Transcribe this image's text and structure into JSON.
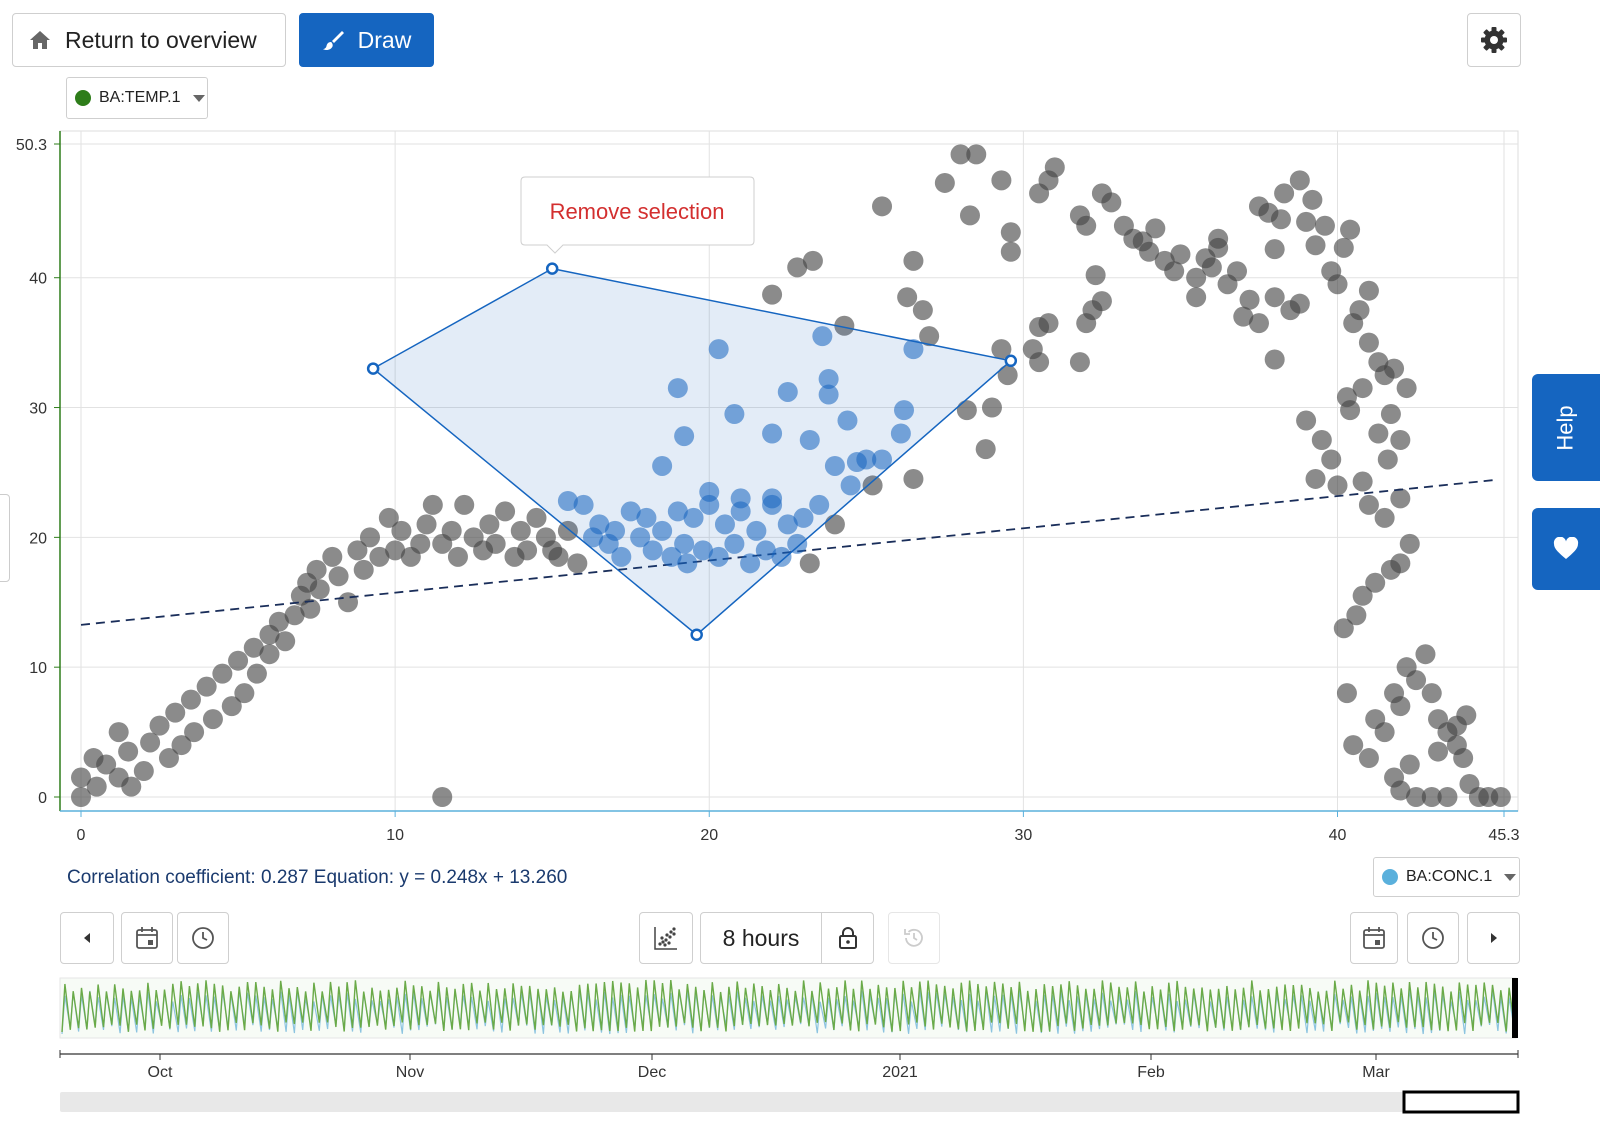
{
  "toolbar": {
    "return_label": "Return to overview",
    "draw_label": "Draw",
    "home_icon": "home-icon",
    "brush_icon": "brush-icon",
    "settings_icon": "gear-icon"
  },
  "selectors": {
    "y_series": {
      "label": "BA:TEMP.1",
      "color": "#2e7d1a"
    },
    "x_series": {
      "label": "BA:CONC.1",
      "color": "#5ab0dc"
    }
  },
  "selection_popup": {
    "label": "Remove selection",
    "color": "#d32f2f"
  },
  "chart_data": {
    "type": "scatter",
    "title": "",
    "xlabel": "",
    "ylabel": "",
    "xlim": [
      0,
      45.3
    ],
    "ylim": [
      0,
      50.3
    ],
    "x_ticks": [
      "0",
      "10",
      "20",
      "30",
      "40",
      "45.3"
    ],
    "y_ticks": [
      "0",
      "10",
      "20",
      "30",
      "40",
      "50.3"
    ],
    "grid": true,
    "point_color": "#444444",
    "selected_color": "#1565c0",
    "regression": {
      "slope": 0.248,
      "intercept": 13.26
    },
    "selection_polygon": [
      [
        15,
        40.7
      ],
      [
        29.6,
        33.6
      ],
      [
        19.6,
        12.5
      ],
      [
        9.3,
        33
      ]
    ],
    "points": [
      [
        0,
        0
      ],
      [
        0,
        1.5
      ],
      [
        0.5,
        0.8
      ],
      [
        0.4,
        3
      ],
      [
        0.8,
        2.5
      ],
      [
        1.2,
        1.5
      ],
      [
        1.5,
        3.5
      ],
      [
        1.2,
        5
      ],
      [
        2,
        2
      ],
      [
        1.6,
        0.8
      ],
      [
        2.2,
        4.2
      ],
      [
        2.5,
        5.5
      ],
      [
        2.8,
        3
      ],
      [
        3,
        6.5
      ],
      [
        3.2,
        4
      ],
      [
        3.5,
        7.5
      ],
      [
        3.6,
        5
      ],
      [
        4,
        8.5
      ],
      [
        4.2,
        6
      ],
      [
        4.5,
        9.5
      ],
      [
        4.8,
        7
      ],
      [
        5,
        10.5
      ],
      [
        5.2,
        8
      ],
      [
        5.5,
        11.5
      ],
      [
        5.6,
        9.5
      ],
      [
        6,
        12.5
      ],
      [
        6,
        11
      ],
      [
        6.3,
        13.5
      ],
      [
        6.5,
        12
      ],
      [
        6.8,
        14
      ],
      [
        7,
        15.5
      ],
      [
        7.2,
        16.5
      ],
      [
        7.3,
        14.5
      ],
      [
        7.5,
        17.5
      ],
      [
        7.6,
        16
      ],
      [
        8,
        18.5
      ],
      [
        8.2,
        17
      ],
      [
        8.5,
        15
      ],
      [
        8.8,
        19
      ],
      [
        9,
        17.5
      ],
      [
        9.2,
        20
      ],
      [
        9.5,
        18.5
      ],
      [
        9.8,
        21.5
      ],
      [
        10,
        19
      ],
      [
        10.2,
        20.5
      ],
      [
        10.5,
        18.5
      ],
      [
        10.8,
        19.5
      ],
      [
        11,
        21
      ],
      [
        11.2,
        22.5
      ],
      [
        11.5,
        19.5
      ],
      [
        11.8,
        20.5
      ],
      [
        12,
        18.5
      ],
      [
        12.2,
        22.5
      ],
      [
        12.5,
        20
      ],
      [
        12.8,
        19
      ],
      [
        13,
        21
      ],
      [
        13.2,
        19.5
      ],
      [
        13.5,
        22
      ],
      [
        13.8,
        18.5
      ],
      [
        14,
        20.5
      ],
      [
        14.2,
        19
      ],
      [
        14.5,
        21.5
      ],
      [
        14.8,
        20
      ],
      [
        15,
        19
      ],
      [
        15.2,
        18.5
      ],
      [
        15.5,
        20.5
      ],
      [
        15.8,
        18
      ],
      [
        11.5,
        0
      ],
      [
        15.5,
        22.8
      ],
      [
        16,
        22.5
      ],
      [
        16.5,
        21
      ],
      [
        17,
        20.5
      ],
      [
        17.5,
        22
      ],
      [
        18,
        21.5
      ],
      [
        18.5,
        20.5
      ],
      [
        19,
        22
      ],
      [
        19.2,
        19.5
      ],
      [
        19.5,
        21.5
      ],
      [
        20,
        22.5
      ],
      [
        20.5,
        21
      ],
      [
        21,
        22
      ],
      [
        21.5,
        20.5
      ],
      [
        22,
        22.5
      ],
      [
        22.5,
        21
      ],
      [
        23,
        21.5
      ],
      [
        23.5,
        22.5
      ],
      [
        24,
        21
      ],
      [
        16.8,
        19.5
      ],
      [
        17.2,
        18.5
      ],
      [
        17.8,
        20
      ],
      [
        18.2,
        19
      ],
      [
        18.8,
        18.5
      ],
      [
        19.3,
        18
      ],
      [
        19.8,
        19
      ],
      [
        20.3,
        18.5
      ],
      [
        20.8,
        19.5
      ],
      [
        21.3,
        18
      ],
      [
        21.8,
        19
      ],
      [
        22.3,
        18.5
      ],
      [
        22.8,
        19.5
      ],
      [
        23.2,
        18
      ],
      [
        16.3,
        20
      ],
      [
        20,
        23.5
      ],
      [
        21,
        23
      ],
      [
        22,
        23
      ],
      [
        19,
        31.5
      ],
      [
        19.2,
        27.8
      ],
      [
        20.3,
        34.5
      ],
      [
        20.8,
        29.5
      ],
      [
        22.5,
        31.2
      ],
      [
        23.6,
        35.5
      ],
      [
        23.8,
        32.2
      ],
      [
        23.8,
        31
      ],
      [
        24.4,
        29
      ],
      [
        23.2,
        27.5
      ],
      [
        24,
        25.5
      ],
      [
        24.7,
        25.8
      ],
      [
        25,
        26
      ],
      [
        26.2,
        29.8
      ],
      [
        26.1,
        28
      ],
      [
        26.5,
        34.5
      ],
      [
        22,
        28
      ],
      [
        18.5,
        25.5
      ],
      [
        24.5,
        24
      ],
      [
        22,
        38.7
      ],
      [
        22.8,
        40.8
      ],
      [
        23.3,
        41.3
      ],
      [
        24.3,
        36.3
      ],
      [
        25.5,
        45.5
      ],
      [
        26.5,
        41.3
      ],
      [
        26.3,
        38.5
      ],
      [
        26.8,
        37.5
      ],
      [
        27,
        35.5
      ],
      [
        27.5,
        47.3
      ],
      [
        28,
        49.5
      ],
      [
        28.5,
        49.5
      ],
      [
        28.3,
        44.8
      ],
      [
        29.3,
        47.5
      ],
      [
        29.6,
        43.5
      ],
      [
        29.6,
        42
      ],
      [
        29.3,
        34.5
      ],
      [
        29.5,
        32.5
      ],
      [
        29,
        30
      ],
      [
        28.8,
        26.8
      ],
      [
        26.5,
        24.5
      ],
      [
        25.2,
        24
      ],
      [
        25.5,
        26
      ],
      [
        28.2,
        29.8
      ],
      [
        30.5,
        46.5
      ],
      [
        30.8,
        47.5
      ],
      [
        31,
        48.5
      ],
      [
        31.8,
        44.8
      ],
      [
        32,
        44
      ],
      [
        32.5,
        46.5
      ],
      [
        32.8,
        45.8
      ],
      [
        33.2,
        44
      ],
      [
        33.5,
        43
      ],
      [
        33.8,
        42.8
      ],
      [
        34.2,
        43.8
      ],
      [
        34,
        42
      ],
      [
        34.5,
        41.3
      ],
      [
        34.8,
        40.5
      ],
      [
        35,
        41.8
      ],
      [
        35.5,
        40
      ],
      [
        35.8,
        41.5
      ],
      [
        36,
        40.8
      ],
      [
        36.2,
        43
      ],
      [
        36.5,
        39.5
      ],
      [
        36.8,
        40.5
      ],
      [
        36.2,
        42.3
      ],
      [
        32.3,
        40.2
      ],
      [
        32.2,
        37.5
      ],
      [
        32,
        36.5
      ],
      [
        32.5,
        38.2
      ],
      [
        30.5,
        36.2
      ],
      [
        30.8,
        36.5
      ],
      [
        30.3,
        34.5
      ],
      [
        31.8,
        33.5
      ],
      [
        30.5,
        33.5
      ],
      [
        35.5,
        38.5
      ],
      [
        37,
        37
      ],
      [
        37.2,
        38.3
      ],
      [
        37.5,
        36.5
      ],
      [
        38,
        38.5
      ],
      [
        38.5,
        37.5
      ],
      [
        38.8,
        38
      ],
      [
        37.5,
        45.5
      ],
      [
        37.8,
        45
      ],
      [
        38,
        42.2
      ],
      [
        38,
        33.7
      ],
      [
        38.3,
        46.5
      ],
      [
        38.2,
        44.5
      ],
      [
        38.8,
        47.5
      ],
      [
        39.2,
        46
      ],
      [
        39,
        44.3
      ],
      [
        39.3,
        42.5
      ],
      [
        39.6,
        44
      ],
      [
        39.8,
        40.5
      ],
      [
        40,
        39.5
      ],
      [
        40.2,
        42.3
      ],
      [
        40.4,
        43.7
      ],
      [
        40.7,
        37.5
      ],
      [
        41,
        39
      ],
      [
        41.3,
        33.5
      ],
      [
        41,
        35
      ],
      [
        40.5,
        36.5
      ],
      [
        40.3,
        30.8
      ],
      [
        40.8,
        31.5
      ],
      [
        41.5,
        32.5
      ],
      [
        41.8,
        33
      ],
      [
        42.2,
        31.5
      ],
      [
        41.7,
        29.5
      ],
      [
        41.3,
        28
      ],
      [
        42,
        27.5
      ],
      [
        41.6,
        26
      ],
      [
        40.8,
        24.3
      ],
      [
        41,
        22.5
      ],
      [
        41.5,
        21.5
      ],
      [
        42,
        23
      ],
      [
        42.3,
        19.5
      ],
      [
        42,
        18
      ],
      [
        41.7,
        17.5
      ],
      [
        41.2,
        16.5
      ],
      [
        40.8,
        15.5
      ],
      [
        40.6,
        14
      ],
      [
        40.2,
        13
      ],
      [
        40.3,
        8
      ],
      [
        40.5,
        4
      ],
      [
        41,
        3
      ],
      [
        41.2,
        6
      ],
      [
        41.5,
        5
      ],
      [
        41.8,
        8
      ],
      [
        42,
        7
      ],
      [
        42.2,
        10
      ],
      [
        42.5,
        9
      ],
      [
        42.8,
        11
      ],
      [
        43,
        8
      ],
      [
        43.2,
        6
      ],
      [
        43.5,
        5
      ],
      [
        43.8,
        4
      ],
      [
        44,
        3
      ],
      [
        44.2,
        1
      ],
      [
        44.5,
        0
      ],
      [
        44.8,
        0
      ],
      [
        45.2,
        0
      ],
      [
        43,
        0
      ],
      [
        43.5,
        0
      ],
      [
        42.5,
        0
      ],
      [
        42,
        0.5
      ],
      [
        41.8,
        1.5
      ],
      [
        42.3,
        2.5
      ],
      [
        43.2,
        3.5
      ],
      [
        43.8,
        5.5
      ],
      [
        44.1,
        6.3
      ],
      [
        39.5,
        27.5
      ],
      [
        39.8,
        26
      ],
      [
        40,
        24
      ],
      [
        40.4,
        29.8
      ],
      [
        39,
        29
      ],
      [
        39.3,
        24.5
      ]
    ]
  },
  "correlation": {
    "text": "Correlation coefficient: 0.287 Equation: y = 0.248x + 13.260"
  },
  "timebar": {
    "interval_label": "8 hours",
    "month_labels": [
      "Oct",
      "Nov",
      "Dec",
      "2021",
      "Feb",
      "Mar"
    ],
    "series_colors": {
      "temp": "#6aaa48",
      "conc": "#8cc4e0"
    }
  },
  "side_tabs": {
    "help_label": "Help",
    "favorite_icon": "heart-icon"
  }
}
